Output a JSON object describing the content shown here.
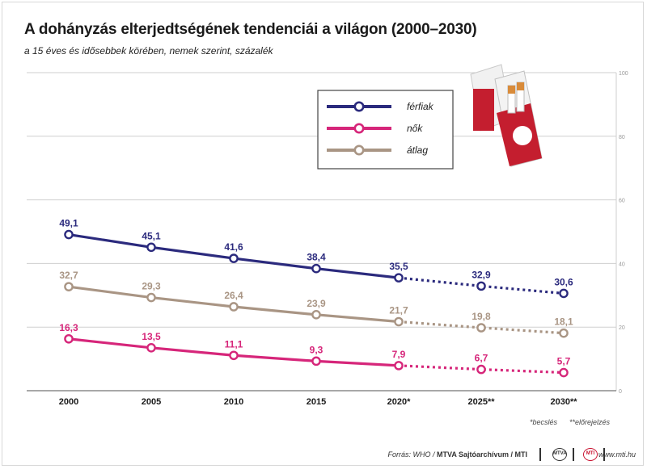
{
  "title": "A dohányzás elterjedtségének tendenciái a világon (2000–2030)",
  "subtitle": "a 15 éves és idősebbek körében, nemek szerint, százalék",
  "notes": {
    "estimate": "*becslés",
    "forecast": "**előrejelzés"
  },
  "footer": {
    "source_prefix": "Forrás: WHO /",
    "source_org": "MTVA Sajtóarchívum / MTI",
    "logo1": "MTVA",
    "logo2": "MTI",
    "site": "www.mti.hu"
  },
  "colors": {
    "ferfiak": "#2b2a7d",
    "nok": "#d6267a",
    "atlag": "#a99584",
    "grid": "#cfcfcf",
    "axis": "#b0b0b0"
  },
  "chart_data": {
    "type": "line",
    "categories": [
      "2000",
      "2005",
      "2010",
      "2015",
      "2020*",
      "2025**",
      "2030**"
    ],
    "ylim": [
      0,
      100
    ],
    "y_ticks": [
      0,
      20,
      40,
      60,
      80,
      100
    ],
    "grid": true,
    "legend_position": "top-right",
    "projected_from_index": 4,
    "series": [
      {
        "name": "férfiak",
        "color_key": "ferfiak",
        "values": [
          49.1,
          45.1,
          41.6,
          38.4,
          35.5,
          32.9,
          30.6
        ],
        "labels": [
          "49,1",
          "45,1",
          "41,6",
          "38,4",
          "35,5",
          "32,9",
          "30,6"
        ]
      },
      {
        "name": "nők",
        "color_key": "nok",
        "values": [
          16.3,
          13.5,
          11.1,
          9.3,
          7.9,
          6.7,
          5.7
        ],
        "labels": [
          "16,3",
          "13,5",
          "11,1",
          "9,3",
          "7,9",
          "6,7",
          "5,7"
        ]
      },
      {
        "name": "átlag",
        "color_key": "atlag",
        "values": [
          32.7,
          29.3,
          26.4,
          23.9,
          21.7,
          19.8,
          18.1
        ],
        "labels": [
          "32,7",
          "29,3",
          "26,4",
          "23,9",
          "21,7",
          "19,8",
          "18,1"
        ]
      }
    ]
  }
}
